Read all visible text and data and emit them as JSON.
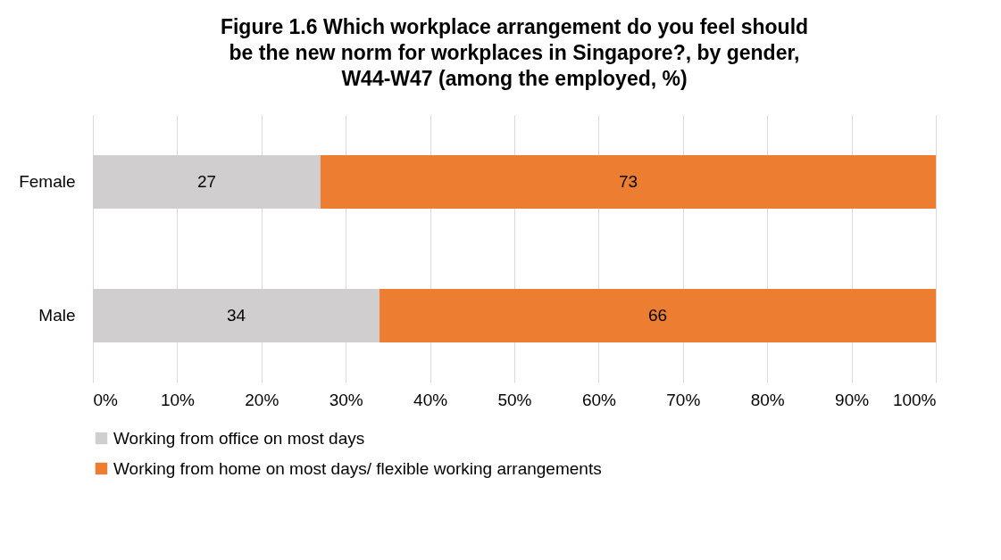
{
  "chart_data": {
    "type": "bar",
    "orientation": "horizontal",
    "stacked": true,
    "title": "Figure 1.6 Which workplace arrangement do you feel should be the new norm for workplaces in Singapore?, by gender, W44-W47 (among the employed, %)",
    "categories": [
      "Female",
      "Male"
    ],
    "series": [
      {
        "name": "Working from office on most days",
        "color": "#d0cece",
        "values": [
          27,
          34
        ]
      },
      {
        "name": "Working from home on most days/ flexible working arrangements",
        "color": "#ed7d31",
        "values": [
          73,
          66
        ]
      }
    ],
    "xlim": [
      0,
      100
    ],
    "xticks": [
      {
        "value": 0,
        "label": "0%"
      },
      {
        "value": 10,
        "label": "10%"
      },
      {
        "value": 20,
        "label": "20%"
      },
      {
        "value": 30,
        "label": "30%"
      },
      {
        "value": 40,
        "label": "40%"
      },
      {
        "value": 50,
        "label": "50%"
      },
      {
        "value": 60,
        "label": "60%"
      },
      {
        "value": 70,
        "label": "70%"
      },
      {
        "value": 80,
        "label": "80%"
      },
      {
        "value": 90,
        "label": "90%"
      },
      {
        "value": 100,
        "label": "100%"
      }
    ],
    "grid": "x",
    "legend": "bottom",
    "data_labels": true
  }
}
